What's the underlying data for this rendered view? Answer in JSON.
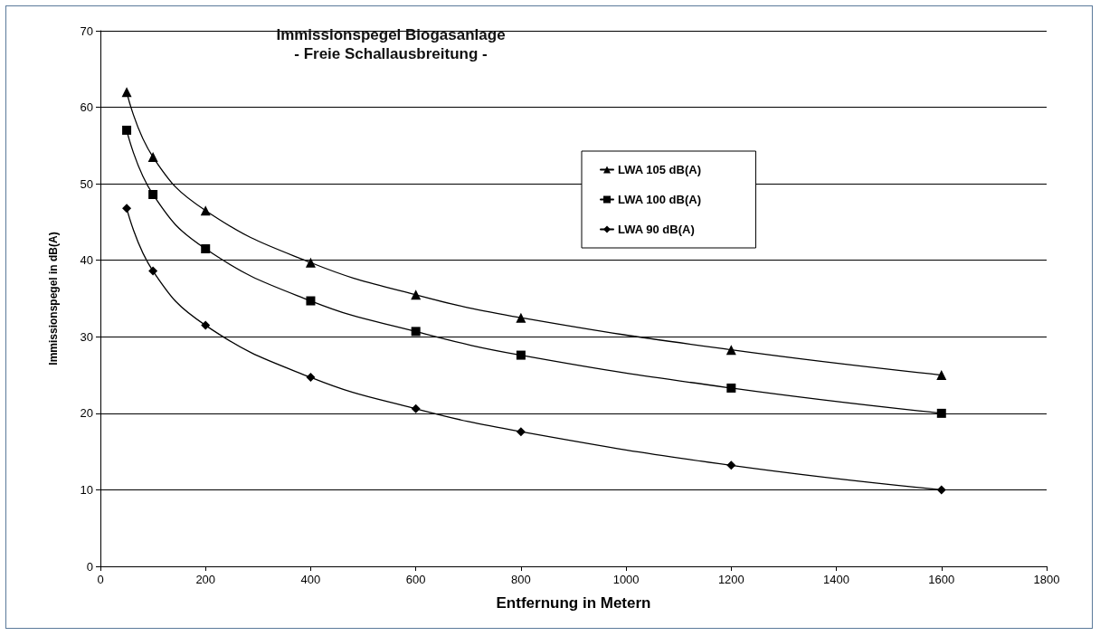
{
  "chart_data": {
    "type": "line",
    "title": "Immissionspegel Biogasanlage",
    "subtitle": "- Freie Schallausbreitung -",
    "xlabel": "Entfernung in Metern",
    "ylabel": "Immissionspegel in dB(A)",
    "x": [
      50,
      100,
      200,
      400,
      600,
      800,
      1200,
      1600
    ],
    "series": [
      {
        "name": "LWA 105 dB(A)",
        "color": "#000000",
        "marker": "triangle",
        "values": [
          62,
          53.5,
          46.5,
          39.7,
          35.5,
          32.5,
          28.3,
          25
        ]
      },
      {
        "name": "LWA 100 dB(A)",
        "color": "#000000",
        "marker": "square",
        "values": [
          57,
          48.6,
          41.5,
          34.7,
          30.7,
          27.6,
          23.3,
          20
        ]
      },
      {
        "name": "LWA 90 dB(A)",
        "color": "#000000",
        "marker": "diamond",
        "values": [
          46.8,
          38.6,
          31.5,
          24.7,
          20.6,
          17.6,
          13.2,
          10
        ]
      }
    ],
    "xlim": [
      0,
      1800
    ],
    "xticks": [
      0,
      200,
      400,
      600,
      800,
      1000,
      1200,
      1400,
      1600,
      1800
    ],
    "ylim": [
      0,
      70
    ],
    "yticks": [
      0,
      10,
      20,
      30,
      40,
      50,
      60,
      70
    ],
    "grid": "y",
    "legend": "top right",
    "line_style": "solid"
  }
}
